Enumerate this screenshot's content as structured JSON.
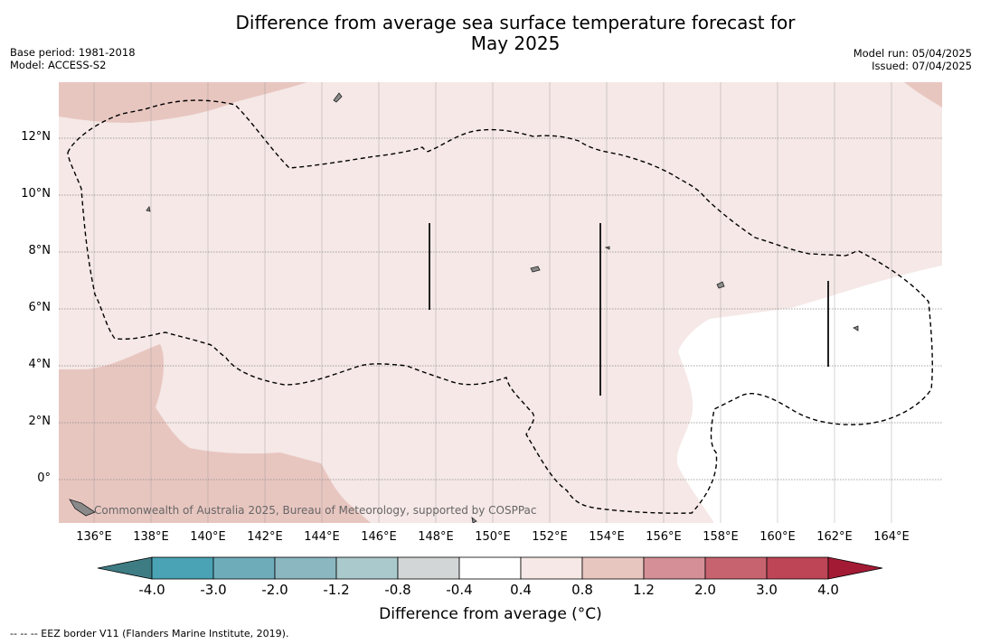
{
  "title": {
    "line1": "Difference from average sea surface temperature forecast for",
    "line2": "May 2025"
  },
  "meta_left": {
    "base_period": "Base period: 1981-2018",
    "model": "Model: ACCESS-S2"
  },
  "meta_right": {
    "model_run": "Model run: 05/04/2025",
    "issued": "Issued: 07/04/2025"
  },
  "map": {
    "lat_labels": [
      "12°N",
      "10°N",
      "8°N",
      "6°N",
      "4°N",
      "2°N",
      "0°"
    ],
    "lon_labels": [
      "136°E",
      "138°E",
      "140°E",
      "142°E",
      "144°E",
      "146°E",
      "148°E",
      "150°E",
      "152°E",
      "154°E",
      "156°E",
      "158°E",
      "160°E",
      "162°E",
      "164°E"
    ],
    "credit": "Commonwealth of Australia 2025, Bureau of Meteorology, supported by COSPPac",
    "colors": {
      "band_04_08": "#f5e8e6",
      "band_08_12": "#e8c6c0",
      "band_m04_04": "#ffffff",
      "land": "#8a8a8a"
    }
  },
  "colorbar": {
    "ticks": [
      "-4.0",
      "-3.0",
      "-2.0",
      "-1.2",
      "-0.8",
      "-0.4",
      "0.4",
      "0.8",
      "1.2",
      "2.0",
      "3.0",
      "4.0"
    ],
    "colors": [
      "#3e7c84",
      "#4aa3b4",
      "#6eacba",
      "#8bb7c0",
      "#aac9cc",
      "#d2d6d6",
      "#ffffff",
      "#f5e8e6",
      "#e8c6c0",
      "#d49096",
      "#c7636f",
      "#bd4555",
      "#a31a35"
    ],
    "title": "Difference from average (°C)"
  },
  "footer": "--  --  -- EEZ border V11 (Flanders Marine Institute, 2019)."
}
